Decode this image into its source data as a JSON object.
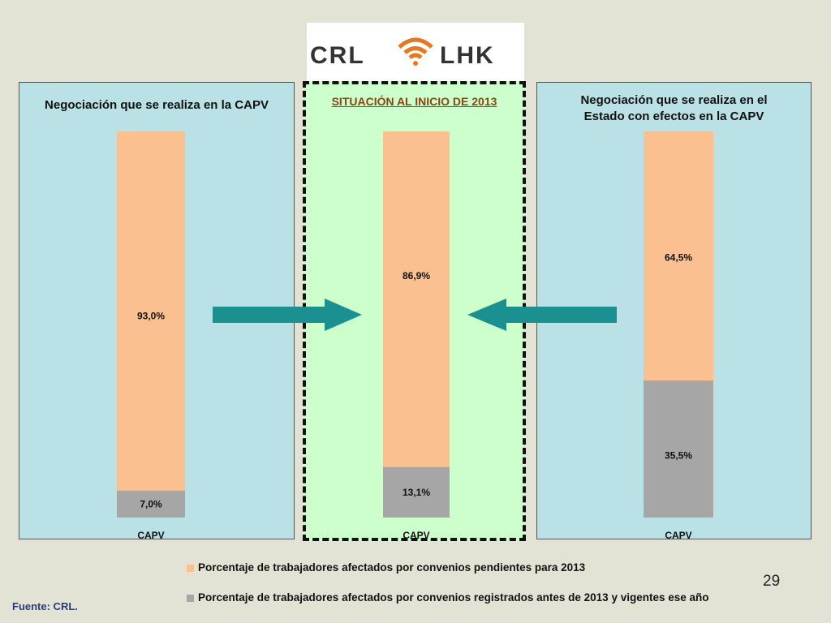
{
  "logo": {
    "left_text": "CRL",
    "right_text": "LHK"
  },
  "panels": [
    {
      "title": "Negociación que se realiza en la CAPV"
    },
    {
      "title": "SITUACIÓN AL INICIO DE 2013"
    },
    {
      "title_line1": "Negociación que se realiza en el",
      "title_line2": "Estado con efectos en la CAPV"
    }
  ],
  "chart_data": [
    {
      "type": "bar",
      "stacked": true,
      "title": "Negociación que se realiza en la CAPV",
      "categories": [
        "CAPV"
      ],
      "series": [
        {
          "name": "Porcentaje de trabajadores afectados por convenios registrados antes de 2013 y vigentes ese año",
          "values": [
            7.0
          ],
          "labels": [
            "7,0%"
          ],
          "color": "#a6a6a6"
        },
        {
          "name": "Porcentaje de trabajadores afectados por convenios pendientes para 2013",
          "values": [
            93.0
          ],
          "labels": [
            "93,0%"
          ],
          "color": "#fac090"
        }
      ],
      "ylim": [
        0,
        100
      ]
    },
    {
      "type": "bar",
      "stacked": true,
      "title": "SITUACIÓN AL INICIO DE 2013",
      "categories": [
        "CAPV"
      ],
      "series": [
        {
          "name": "Porcentaje de trabajadores afectados por convenios registrados antes de 2013 y vigentes ese año",
          "values": [
            13.1
          ],
          "labels": [
            "13,1%"
          ],
          "color": "#a6a6a6"
        },
        {
          "name": "Porcentaje de trabajadores afectados por convenios pendientes para 2013",
          "values": [
            86.9
          ],
          "labels": [
            "86,9%"
          ],
          "color": "#fac090"
        }
      ],
      "ylim": [
        0,
        100
      ]
    },
    {
      "type": "bar",
      "stacked": true,
      "title": "Negociación que se realiza en el Estado con efectos en la CAPV",
      "categories": [
        "CAPV"
      ],
      "series": [
        {
          "name": "Porcentaje de trabajadores afectados por convenios registrados antes de 2013 y vigentes ese año",
          "values": [
            35.5
          ],
          "labels": [
            "35,5%"
          ],
          "color": "#a6a6a6"
        },
        {
          "name": "Porcentaje de trabajadores afectados por convenios pendientes para 2013",
          "values": [
            64.5
          ],
          "labels": [
            "64,5%"
          ],
          "color": "#fac090"
        }
      ],
      "ylim": [
        0,
        100
      ]
    }
  ],
  "legend": [
    {
      "label": "Porcentaje de trabajadores afectados por convenios pendientes para 2013",
      "color": "#fac090"
    },
    {
      "label": "Porcentaje de trabajadores afectados por convenios registrados antes de 2013 y vigentes ese año",
      "color": "#a6a6a6"
    }
  ],
  "page_number": "29",
  "source": "Fuente: CRL.",
  "colors": {
    "arrow": "#1a9090",
    "logo_text": "#333333",
    "logo_accent": "#e87722"
  }
}
